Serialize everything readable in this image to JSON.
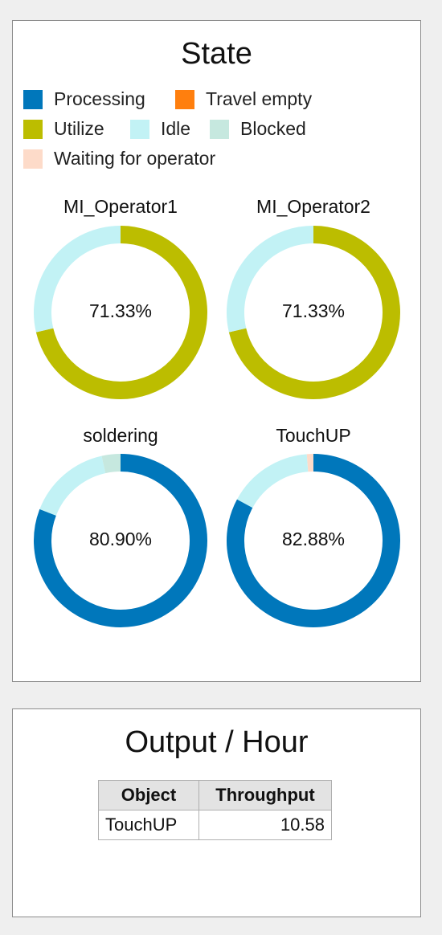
{
  "state_panel": {
    "title": "State",
    "legend": [
      {
        "label": "Processing",
        "color": "#0077bb"
      },
      {
        "label": "Travel empty",
        "color": "#ff7f0e"
      },
      {
        "label": "Utilize",
        "color": "#bcbd00"
      },
      {
        "label": "Idle",
        "color": "#c2f2f5"
      },
      {
        "label": "Blocked",
        "color": "#c6e8df"
      },
      {
        "label": "Waiting for operator",
        "color": "#fddbc9"
      }
    ],
    "donuts": [
      {
        "name": "MI_Operator1",
        "center_text": "71.33%",
        "segments": [
          {
            "state": "Utilize",
            "percent": 71.33
          },
          {
            "state": "Idle",
            "percent": 28.67
          }
        ]
      },
      {
        "name": "MI_Operator2",
        "center_text": "71.33%",
        "segments": [
          {
            "state": "Utilize",
            "percent": 71.33
          },
          {
            "state": "Idle",
            "percent": 28.67
          }
        ]
      },
      {
        "name": "soldering",
        "center_text": "80.90%",
        "segments": [
          {
            "state": "Processing",
            "percent": 80.9
          },
          {
            "state": "Idle",
            "percent": 15.6
          },
          {
            "state": "Blocked",
            "percent": 3.5
          }
        ]
      },
      {
        "name": "TouchUP",
        "center_text": "82.88%",
        "segments": [
          {
            "state": "Processing",
            "percent": 82.88
          },
          {
            "state": "Idle",
            "percent": 15.9
          },
          {
            "state": "Waiting for operator",
            "percent": 1.22
          }
        ]
      }
    ]
  },
  "output_panel": {
    "title": "Output / Hour",
    "table": {
      "headers": [
        "Object",
        "Throughput"
      ],
      "rows": [
        [
          "TouchUP",
          "10.58"
        ]
      ]
    }
  }
}
